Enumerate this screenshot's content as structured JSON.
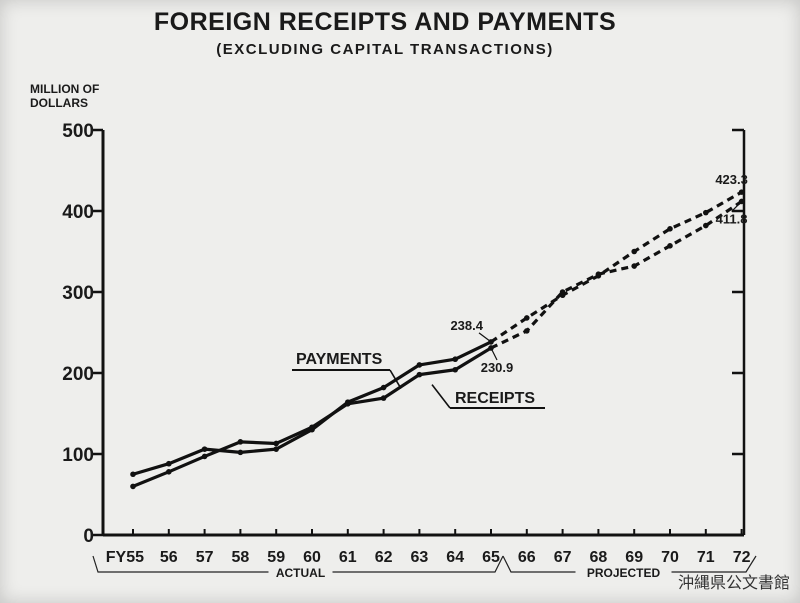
{
  "chart_data": {
    "type": "line",
    "title": "FOREIGN RECEIPTS AND PAYMENTS",
    "subtitle": "(EXCLUDING CAPITAL TRANSACTIONS)",
    "ylabel": [
      "MILLION OF",
      "DOLLARS"
    ],
    "xlabel": "",
    "ylim": [
      0,
      500
    ],
    "yticks": [
      "0",
      "100",
      "200",
      "300",
      "400",
      "500"
    ],
    "ytick_values": [
      0,
      100,
      200,
      300,
      400,
      500
    ],
    "categories": [
      "FY55",
      "56",
      "57",
      "58",
      "59",
      "60",
      "61",
      "62",
      "63",
      "64",
      "65",
      "66",
      "67",
      "68",
      "69",
      "70",
      "71",
      "72"
    ],
    "actual_end_index": 10,
    "period_labels": {
      "actual": "ACTUAL",
      "projected": "PROJECTED"
    },
    "series": [
      {
        "name": "PAYMENTS",
        "values": [
          75,
          88,
          106,
          102,
          106,
          130,
          164,
          182,
          210,
          217,
          238.4,
          268,
          296,
          320,
          350,
          378,
          398,
          423.3
        ]
      },
      {
        "name": "RECEIPTS",
        "values": [
          60,
          78,
          97,
          115,
          113,
          133,
          162,
          169,
          198,
          204,
          230.9,
          252,
          300,
          322,
          332,
          357,
          382,
          411.8
        ]
      }
    ],
    "data_labels": [
      {
        "series": "PAYMENTS",
        "index": 10,
        "text": "238.4"
      },
      {
        "series": "RECEIPTS",
        "index": 10,
        "text": "230.9"
      },
      {
        "series": "PAYMENTS",
        "index": 17,
        "text": "423.3"
      },
      {
        "series": "RECEIPTS",
        "index": 17,
        "text": "411.8"
      }
    ],
    "line_style": {
      "actual": "solid",
      "projected": "dashed"
    },
    "grid": false,
    "legend": "inline labels"
  },
  "watermark": "沖縄県公文書館"
}
